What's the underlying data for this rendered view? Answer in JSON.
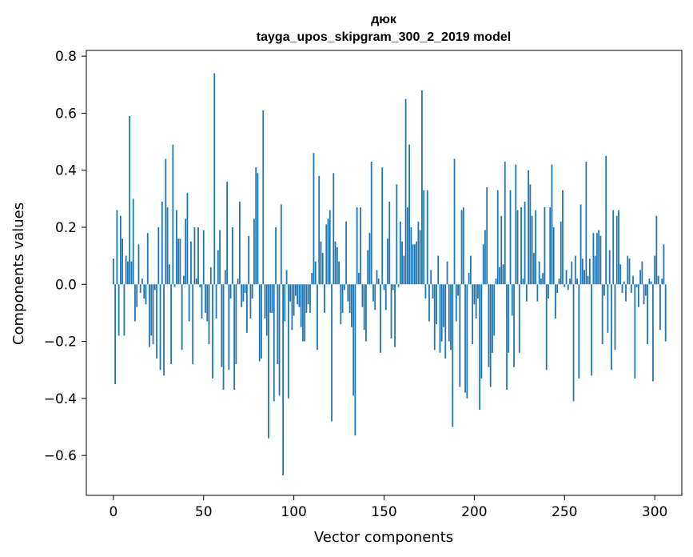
{
  "chart_data": {
    "type": "bar",
    "title": "дюк",
    "subtitle": "tayga_upos_skipgram_300_2_2019 model",
    "xlabel": "Vector components",
    "ylabel": "Components values",
    "xlim": [
      -15,
      315
    ],
    "ylim": [
      -0.74,
      0.82
    ],
    "xticks": [
      0,
      50,
      100,
      150,
      200,
      250,
      300
    ],
    "xtick_labels": [
      "0",
      "50",
      "100",
      "150",
      "200",
      "250",
      "300"
    ],
    "yticks": [
      -0.6,
      -0.4,
      -0.2,
      0.0,
      0.2,
      0.4,
      0.6,
      0.8
    ],
    "ytick_labels": [
      "−0.6",
      "−0.4",
      "−0.2",
      "0.0",
      "0.2",
      "0.4",
      "0.6",
      "0.8"
    ],
    "grid": false,
    "bar_color": "#1f77b4",
    "values": [
      0.09,
      -0.35,
      0.26,
      -0.18,
      0.24,
      0.16,
      -0.18,
      0.1,
      0.08,
      0.59,
      0.08,
      0.3,
      -0.13,
      -0.08,
      0.14,
      -0.03,
      0.02,
      -0.05,
      -0.07,
      0.18,
      -0.22,
      -0.18,
      -0.21,
      -0.02,
      -0.26,
      0.2,
      -0.3,
      0.29,
      -0.32,
      0.44,
      0.27,
      0.07,
      -0.28,
      0.49,
      -0.01,
      0.26,
      0.16,
      0.16,
      -0.23,
      0.03,
      0.23,
      0.32,
      -0.13,
      0.15,
      -0.28,
      0.2,
      0.02,
      0.2,
      -0.01,
      -0.12,
      0.19,
      -0.1,
      -0.13,
      -0.21,
      0.06,
      -0.33,
      0.74,
      -0.12,
      0.12,
      0.19,
      -0.29,
      -0.37,
      0.05,
      0.36,
      -0.3,
      -0.05,
      0.2,
      -0.37,
      -0.28,
      0.02,
      0.29,
      -0.08,
      -0.06,
      -0.03,
      -0.17,
      0.17,
      -0.12,
      -0.05,
      0.23,
      0.41,
      0.39,
      -0.27,
      -0.26,
      0.61,
      -0.12,
      -0.18,
      -0.54,
      -0.1,
      -0.1,
      -0.41,
      0.2,
      -0.28,
      -0.39,
      0.28,
      -0.67,
      -0.13,
      0.05,
      -0.4,
      -0.06,
      -0.16,
      -0.11,
      -0.04,
      -0.07,
      -0.08,
      -0.15,
      -0.2,
      -0.2,
      -0.1,
      -0.07,
      -0.1,
      0.04,
      0.46,
      0.08,
      -0.23,
      0.38,
      0.15,
      0.11,
      -0.1,
      0.21,
      0.23,
      0.26,
      -0.48,
      0.39,
      0.15,
      0.13,
      0.08,
      -0.14,
      -0.1,
      -0.02,
      0.22,
      -0.06,
      -0.1,
      -0.15,
      -0.39,
      -0.53,
      0.27,
      0.04,
      0.27,
      -0.08,
      -0.16,
      -0.2,
      0.12,
      0.18,
      0.43,
      -0.06,
      -0.09,
      0.05,
      0.02,
      -0.24,
      0.41,
      -0.02,
      -0.09,
      0.16,
      0.29,
      -0.19,
      -0.02,
      -0.22,
      0.35,
      -0.01,
      0.22,
      0.15,
      0.1,
      0.65,
      0.27,
      0.49,
      0.2,
      0.14,
      0.14,
      0.15,
      0.22,
      0.19,
      0.68,
      0.33,
      -0.05,
      0.33,
      -0.13,
      0.05,
      -0.05,
      -0.23,
      -0.14,
      0.1,
      -0.24,
      -0.2,
      -0.15,
      -0.26,
      0.08,
      -0.2,
      -0.23,
      -0.5,
      0.44,
      -0.13,
      -0.04,
      -0.36,
      0.26,
      0.27,
      -0.38,
      -0.4,
      0.04,
      0.1,
      -0.21,
      -0.07,
      -0.12,
      -0.05,
      -0.44,
      -0.33,
      0.14,
      0.19,
      0.34,
      -0.29,
      -0.36,
      -0.24,
      -0.18,
      0.02,
      0.33,
      0.06,
      0.24,
      0.07,
      0.43,
      -0.37,
      -0.24,
      0.33,
      -0.11,
      -0.29,
      0.42,
      0.26,
      -0.24,
      0.27,
      0.02,
      0.29,
      -0.06,
      0.4,
      0.35,
      0.24,
      0.11,
      0.26,
      -0.06,
      0.08,
      0.02,
      0.04,
      0.27,
      -0.3,
      -0.05,
      0.27,
      0.42,
      0.2,
      -0.12,
      -0.03,
      0.02,
      0.22,
      0.33,
      -0.01,
      0.05,
      -0.02,
      0.02,
      0.08,
      -0.41,
      0.1,
      0.02,
      -0.33,
      0.28,
      0.09,
      0.05,
      0.43,
      0.03,
      0.09,
      -0.32,
      0.18,
      0.1,
      0.18,
      0.19,
      0.17,
      -0.21,
      -0.04,
      0.45,
      -0.17,
      0.12,
      -0.3,
      0.26,
      -0.23,
      0.24,
      0.26,
      0.07,
      -0.03,
      0.01,
      -0.06,
      0.1,
      0.09,
      -0.03,
      0.03,
      -0.33,
      -0.01,
      -0.08,
      0.05,
      0.08,
      -0.07,
      -0.04,
      -0.21,
      0.02,
      0.01,
      -0.34,
      0.1,
      0.24,
      0.03,
      -0.16,
      0.02,
      0.14,
      -0.2
    ]
  }
}
